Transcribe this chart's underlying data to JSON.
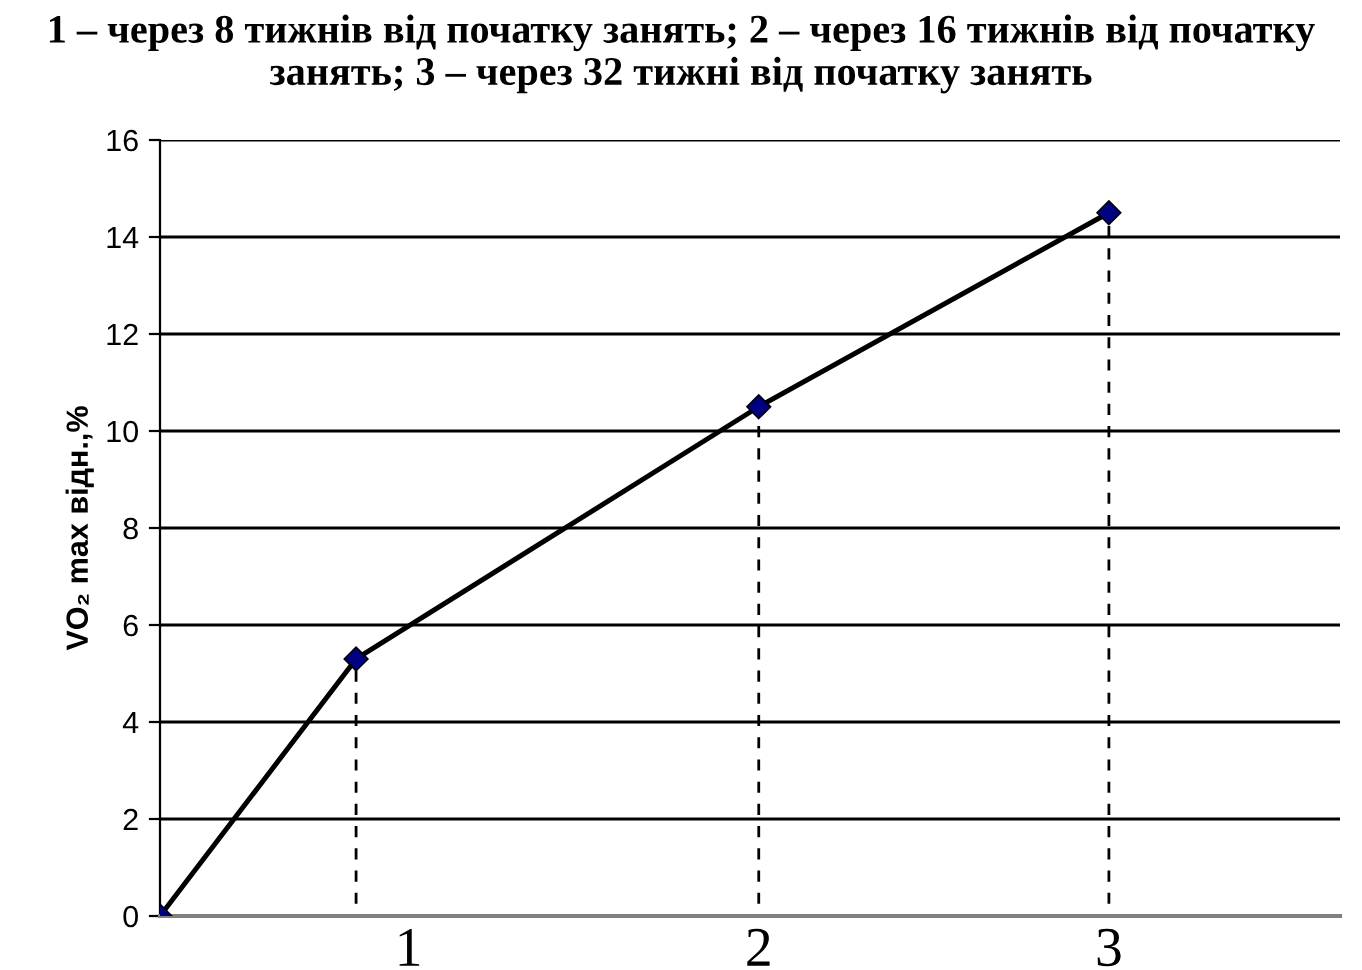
{
  "chart_data": {
    "type": "line",
    "title": "1 – через 8 тижнів від початку занять; 2 – через 16 тижнів від початку занять; 3 – через 32 тижні від початку занять",
    "ylabel": "VO₂ max відн.,%",
    "x": [
      0.29,
      0.85,
      2.0,
      3.0
    ],
    "series": [
      {
        "color": "#000080",
        "values": [
          0,
          5.3,
          10.5,
          14.5
        ]
      }
    ],
    "xlim": [
      0.29,
      3.66
    ],
    "xticks": [
      1,
      2,
      3
    ],
    "ylim": [
      0,
      16
    ],
    "yticks": [
      0,
      2,
      4,
      6,
      8,
      10,
      12,
      14,
      16
    ],
    "grid": "y",
    "marker": "diamond",
    "line_style": "solid",
    "legend": false,
    "ref_lines": [
      {
        "axis": "x",
        "value": 0.85,
        "line_style": "dashed"
      },
      {
        "axis": "x",
        "value": 2.0,
        "line_style": "dashed"
      },
      {
        "axis": "x",
        "value": 3.0,
        "line_style": "dashed"
      }
    ]
  }
}
